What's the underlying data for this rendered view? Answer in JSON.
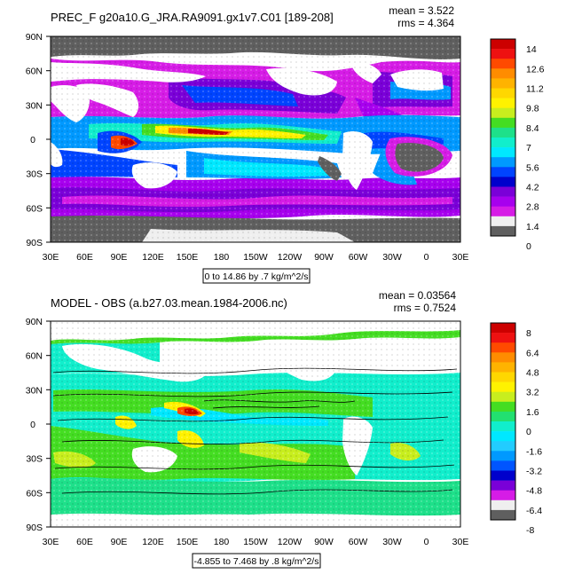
{
  "panels": [
    {
      "id": "top",
      "title": "PREC_F g20a10.G_JRA.RA9091.gx1v7.C01 [189-208]",
      "mean_text": "mean = 3.522",
      "rms_text": "rms = 4.364",
      "range_note": "0 to 14.86 by .7 kg/m^2/s",
      "lat_labels": [
        "90N",
        "60N",
        "30N",
        "0",
        "30S",
        "60S",
        "90S"
      ],
      "lon_labels": [
        "30E",
        "60E",
        "90E",
        "120E",
        "150E",
        "180",
        "150W",
        "120W",
        "90W",
        "60W",
        "30W",
        "0",
        "30E"
      ],
      "colorbar": {
        "labels": [
          "14",
          "12.6",
          "11.2",
          "9.8",
          "8.4",
          "7",
          "5.6",
          "4.2",
          "2.8",
          "1.4",
          "0"
        ],
        "colors": [
          "#cc0000",
          "#ee1111",
          "#ff4a00",
          "#ff8c00",
          "#ffb300",
          "#ffd700",
          "#fff200",
          "#c8ee1e",
          "#44dd22",
          "#1ee08a",
          "#11eecc",
          "#00e8ff",
          "#0099ff",
          "#0044ff",
          "#0000cc",
          "#7a00d8",
          "#a700ee",
          "#d61ce6",
          "#efefef",
          "#5f5f5f"
        ]
      }
    },
    {
      "id": "bottom",
      "title": "MODEL - OBS (a.b27.03.mean.1984-2006.nc)",
      "mean_text": "mean = 0.03564",
      "rms_text": "rms = 0.7524",
      "range_note": "-4.855 to 7.468 by .8 kg/m^2/s",
      "lat_labels": [
        "90N",
        "60N",
        "30N",
        "0",
        "30S",
        "60S",
        "90S"
      ],
      "lon_labels": [
        "30E",
        "60E",
        "90E",
        "120E",
        "150E",
        "180",
        "150W",
        "120W",
        "90W",
        "60W",
        "30W",
        "0",
        "30E"
      ],
      "colorbar": {
        "labels": [
          "8",
          "6.4",
          "4.8",
          "3.2",
          "1.6",
          "0",
          "-1.6",
          "-3.2",
          "-4.8",
          "-6.4",
          "-8"
        ],
        "colors": [
          "#cc0000",
          "#ee1111",
          "#ff4a00",
          "#ff8c00",
          "#ffb300",
          "#ffd700",
          "#fff200",
          "#c8ee1e",
          "#44dd22",
          "#22e070",
          "#11eecc",
          "#00e8ff",
          "#22ccff",
          "#0099ff",
          "#0055ff",
          "#0000cc",
          "#7a00d8",
          "#d61ce6",
          "#efefef",
          "#5f5f5f"
        ]
      }
    }
  ]
}
